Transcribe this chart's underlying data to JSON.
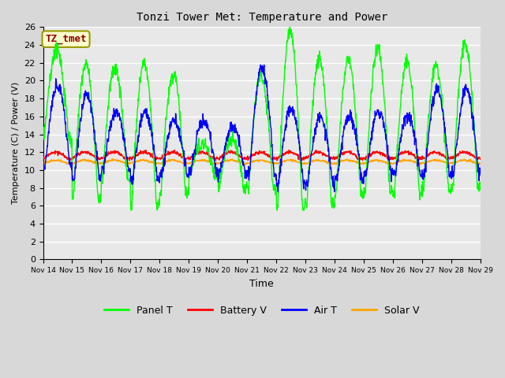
{
  "title": "Tonzi Tower Met: Temperature and Power",
  "xlabel": "Time",
  "ylabel": "Temperature (C) / Power (V)",
  "ylim": [
    0,
    26
  ],
  "yticks": [
    0,
    2,
    4,
    6,
    8,
    10,
    12,
    14,
    16,
    18,
    20,
    22,
    24,
    26
  ],
  "n_days": 15,
  "xtick_labels": [
    "Nov 14",
    "Nov 15",
    "Nov 16",
    "Nov 17",
    "Nov 18",
    "Nov 19",
    "Nov 20",
    "Nov 21",
    "Nov 22",
    "Nov 23",
    "Nov 24",
    "Nov 25",
    "Nov 26",
    "Nov 27",
    "Nov 28",
    "Nov 29"
  ],
  "colors": {
    "panel_t": "#00FF00",
    "battery_v": "#FF0000",
    "air_t": "#0000FF",
    "solar_v": "#FFA500"
  },
  "legend_labels": [
    "Panel T",
    "Battery V",
    "Air T",
    "Solar V"
  ],
  "annotation_text": "TZ_tmet",
  "annotation_bg": "#FFFFCC",
  "annotation_border": "#999900",
  "plot_bg": "#E8E8E8",
  "grid_color": "#FFFFFF",
  "linewidth": 1.0,
  "fig_width": 6.4,
  "fig_height": 4.8,
  "dpi": 100
}
